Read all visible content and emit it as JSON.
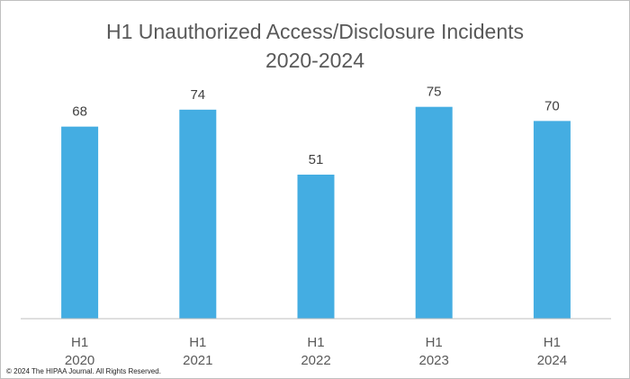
{
  "chart_data": {
    "type": "bar",
    "title_line1": "H1 Unauthorized Access/Disclosure Incidents",
    "title_line2": "2020-2024",
    "categories": [
      [
        "H1",
        "2020"
      ],
      [
        "H1",
        "2021"
      ],
      [
        "H1",
        "2022"
      ],
      [
        "H1",
        "2023"
      ],
      [
        "H1",
        "2024"
      ]
    ],
    "values": [
      68,
      74,
      51,
      75,
      70
    ],
    "ylim": [
      0,
      80
    ],
    "bar_color": "#44ADE2",
    "axis_color": "#bfbfbf",
    "label_color": "#404040",
    "grid": false,
    "legend": "none"
  },
  "footer": {
    "copyright": "© 2024 The HIPAA Journal. All Rights Reserved."
  }
}
